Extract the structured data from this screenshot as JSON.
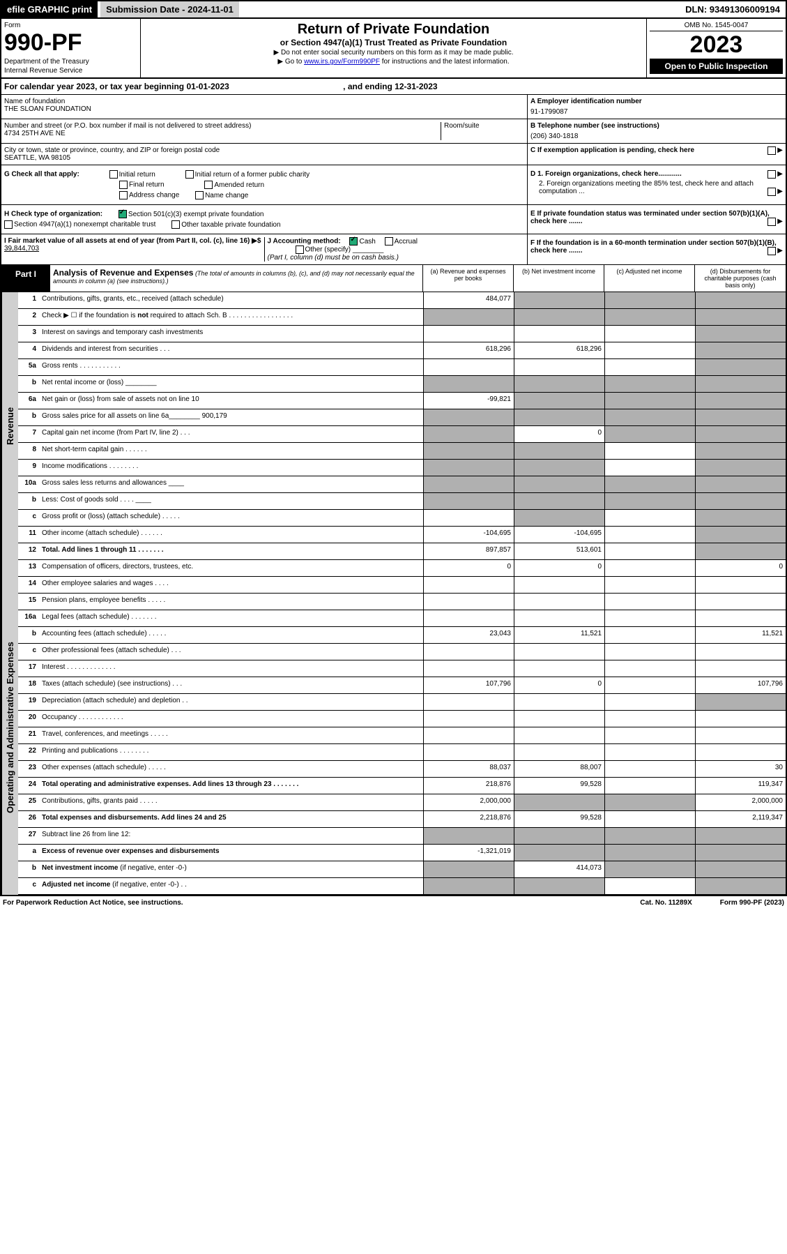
{
  "topbar": {
    "efile": "efile GRAPHIC print",
    "subdate_lbl": "Submission Date - 2024-11-01",
    "dln": "DLN: 93491306009194"
  },
  "header": {
    "form": "Form",
    "formno": "990-PF",
    "dept": "Department of the Treasury",
    "irs": "Internal Revenue Service",
    "title": "Return of Private Foundation",
    "subtitle": "or Section 4947(a)(1) Trust Treated as Private Foundation",
    "note1": "▶ Do not enter social security numbers on this form as it may be made public.",
    "note2": "▶ Go to ",
    "link": "www.irs.gov/Form990PF",
    "note3": " for instructions and the latest information.",
    "omb": "OMB No. 1545-0047",
    "year": "2023",
    "open": "Open to Public Inspection"
  },
  "cal": {
    "text": "For calendar year 2023, or tax year beginning 01-01-2023",
    "end": ", and ending 12-31-2023"
  },
  "info": {
    "name_lbl": "Name of foundation",
    "name": "THE SLOAN FOUNDATION",
    "addr_lbl": "Number and street (or P.O. box number if mail is not delivered to street address)",
    "addr": "4734 25TH AVE NE",
    "room_lbl": "Room/suite",
    "city_lbl": "City or town, state or province, country, and ZIP or foreign postal code",
    "city": "SEATTLE, WA  98105",
    "ein_lbl": "A Employer identification number",
    "ein": "91-1799087",
    "tel_lbl": "B Telephone number (see instructions)",
    "tel": "(206) 340-1818",
    "c_lbl": "C If exemption application is pending, check here"
  },
  "checks": {
    "g": "G Check all that apply:",
    "g1": "Initial return",
    "g2": "Initial return of a former public charity",
    "g3": "Final return",
    "g4": "Amended return",
    "g5": "Address change",
    "g6": "Name change",
    "h": "H Check type of organization:",
    "h1": "Section 501(c)(3) exempt private foundation",
    "h2": "Section 4947(a)(1) nonexempt charitable trust",
    "h3": "Other taxable private foundation",
    "i": "I Fair market value of all assets at end of year (from Part II, col. (c), line 16) ▶$ ",
    "ival": "39,844,703",
    "j": "J Accounting method:",
    "j1": "Cash",
    "j2": "Accrual",
    "j3": "Other (specify)",
    "jnote": "(Part I, column (d) must be on cash basis.)",
    "d1": "D 1. Foreign organizations, check here............",
    "d2": "2. Foreign organizations meeting the 85% test, check here and attach computation ...",
    "e": "E If private foundation status was terminated under section 507(b)(1)(A), check here .......",
    "f": "F If the foundation is in a 60-month termination under section 507(b)(1)(B), check here .......",
    "arw": "▶"
  },
  "part1": {
    "label": "Part I",
    "title": "Analysis of Revenue and Expenses",
    "subtitle": "(The total of amounts in columns (b), (c), and (d) may not necessarily equal the amounts in column (a) (see instructions).)",
    "cola": "(a) Revenue and expenses per books",
    "colb": "(b) Net investment income",
    "colc": "(c) Adjusted net income",
    "cold": "(d) Disbursements for charitable purposes (cash basis only)"
  },
  "sidelabels": {
    "rev": "Revenue",
    "exp": "Operating and Administrative Expenses"
  },
  "rows": [
    {
      "n": "1",
      "d": "",
      "a": "484,077",
      "b": "",
      "c": "",
      "ga": false,
      "gb": true,
      "gc": true,
      "gd": true
    },
    {
      "n": "2",
      "d": "",
      "a": "",
      "b": "",
      "c": "",
      "ga": true,
      "gb": true,
      "gc": true,
      "gd": true
    },
    {
      "n": "3",
      "d": "",
      "a": "",
      "b": "",
      "c": "",
      "ga": false,
      "gb": false,
      "gc": false,
      "gd": true
    },
    {
      "n": "4",
      "d": "",
      "a": "618,296",
      "b": "618,296",
      "c": "",
      "ga": false,
      "gb": false,
      "gc": false,
      "gd": true
    },
    {
      "n": "5a",
      "d": "",
      "a": "",
      "b": "",
      "c": "",
      "ga": false,
      "gb": false,
      "gc": false,
      "gd": true
    },
    {
      "n": "b",
      "d": "",
      "a": "",
      "b": "",
      "c": "",
      "ga": true,
      "gb": true,
      "gc": true,
      "gd": true
    },
    {
      "n": "6a",
      "d": "",
      "a": "-99,821",
      "b": "",
      "c": "",
      "ga": false,
      "gb": true,
      "gc": true,
      "gd": true
    },
    {
      "n": "b",
      "d": "",
      "a": "",
      "b": "",
      "c": "",
      "ga": true,
      "gb": true,
      "gc": true,
      "gd": true
    },
    {
      "n": "7",
      "d": "",
      "a": "",
      "b": "0",
      "c": "",
      "ga": true,
      "gb": false,
      "gc": true,
      "gd": true
    },
    {
      "n": "8",
      "d": "",
      "a": "",
      "b": "",
      "c": "",
      "ga": true,
      "gb": true,
      "gc": false,
      "gd": true
    },
    {
      "n": "9",
      "d": "",
      "a": "",
      "b": "",
      "c": "",
      "ga": true,
      "gb": true,
      "gc": false,
      "gd": true
    },
    {
      "n": "10a",
      "d": "",
      "a": "",
      "b": "",
      "c": "",
      "ga": true,
      "gb": true,
      "gc": true,
      "gd": true
    },
    {
      "n": "b",
      "d": "",
      "a": "",
      "b": "",
      "c": "",
      "ga": true,
      "gb": true,
      "gc": true,
      "gd": true
    },
    {
      "n": "c",
      "d": "",
      "a": "",
      "b": "",
      "c": "",
      "ga": false,
      "gb": true,
      "gc": false,
      "gd": true
    },
    {
      "n": "11",
      "d": "",
      "a": "-104,695",
      "b": "-104,695",
      "c": "",
      "ga": false,
      "gb": false,
      "gc": false,
      "gd": true
    },
    {
      "n": "12",
      "d": "",
      "a": "897,857",
      "b": "513,601",
      "c": "",
      "ga": false,
      "gb": false,
      "gc": false,
      "gd": true,
      "bold": true
    }
  ],
  "exprows": [
    {
      "n": "13",
      "d": "0",
      "a": "0",
      "b": "0",
      "c": "",
      "ga": false,
      "gb": false,
      "gc": false,
      "gd": false
    },
    {
      "n": "14",
      "d": "",
      "a": "",
      "b": "",
      "c": "",
      "ga": false,
      "gb": false,
      "gc": false,
      "gd": false
    },
    {
      "n": "15",
      "d": "",
      "a": "",
      "b": "",
      "c": "",
      "ga": false,
      "gb": false,
      "gc": false,
      "gd": false
    },
    {
      "n": "16a",
      "d": "",
      "a": "",
      "b": "",
      "c": "",
      "ga": false,
      "gb": false,
      "gc": false,
      "gd": false
    },
    {
      "n": "b",
      "d": "11,521",
      "a": "23,043",
      "b": "11,521",
      "c": "",
      "ga": false,
      "gb": false,
      "gc": false,
      "gd": false
    },
    {
      "n": "c",
      "d": "",
      "a": "",
      "b": "",
      "c": "",
      "ga": false,
      "gb": false,
      "gc": false,
      "gd": false
    },
    {
      "n": "17",
      "d": "",
      "a": "",
      "b": "",
      "c": "",
      "ga": false,
      "gb": false,
      "gc": false,
      "gd": false
    },
    {
      "n": "18",
      "d": "107,796",
      "a": "107,796",
      "b": "0",
      "c": "",
      "ga": false,
      "gb": false,
      "gc": false,
      "gd": false
    },
    {
      "n": "19",
      "d": "",
      "a": "",
      "b": "",
      "c": "",
      "ga": false,
      "gb": false,
      "gc": false,
      "gd": true
    },
    {
      "n": "20",
      "d": "",
      "a": "",
      "b": "",
      "c": "",
      "ga": false,
      "gb": false,
      "gc": false,
      "gd": false
    },
    {
      "n": "21",
      "d": "",
      "a": "",
      "b": "",
      "c": "",
      "ga": false,
      "gb": false,
      "gc": false,
      "gd": false
    },
    {
      "n": "22",
      "d": "",
      "a": "",
      "b": "",
      "c": "",
      "ga": false,
      "gb": false,
      "gc": false,
      "gd": false
    },
    {
      "n": "23",
      "d": "30",
      "a": "88,037",
      "b": "88,007",
      "c": "",
      "ga": false,
      "gb": false,
      "gc": false,
      "gd": false
    },
    {
      "n": "24",
      "d": "119,347",
      "a": "218,876",
      "b": "99,528",
      "c": "",
      "ga": false,
      "gb": false,
      "gc": false,
      "gd": false,
      "bold": true
    },
    {
      "n": "25",
      "d": "2,000,000",
      "a": "2,000,000",
      "b": "",
      "c": "",
      "ga": false,
      "gb": true,
      "gc": true,
      "gd": false
    },
    {
      "n": "26",
      "d": "2,119,347",
      "a": "2,218,876",
      "b": "99,528",
      "c": "",
      "ga": false,
      "gb": false,
      "gc": false,
      "gd": false,
      "bold": true
    },
    {
      "n": "27",
      "d": "",
      "a": "",
      "b": "",
      "c": "",
      "ga": true,
      "gb": true,
      "gc": true,
      "gd": true
    },
    {
      "n": "a",
      "d": "",
      "a": "-1,321,019",
      "b": "",
      "c": "",
      "ga": false,
      "gb": true,
      "gc": true,
      "gd": true,
      "bold": true
    },
    {
      "n": "b",
      "d": "",
      "a": "",
      "b": "414,073",
      "c": "",
      "ga": true,
      "gb": false,
      "gc": true,
      "gd": true,
      "bold": true
    },
    {
      "n": "c",
      "d": "",
      "a": "",
      "b": "",
      "c": "",
      "ga": true,
      "gb": true,
      "gc": false,
      "gd": true,
      "bold": true
    }
  ],
  "footer": {
    "left": "For Paperwork Reduction Act Notice, see instructions.",
    "mid": "Cat. No. 11289X",
    "right": "Form 990-PF (2023)"
  }
}
